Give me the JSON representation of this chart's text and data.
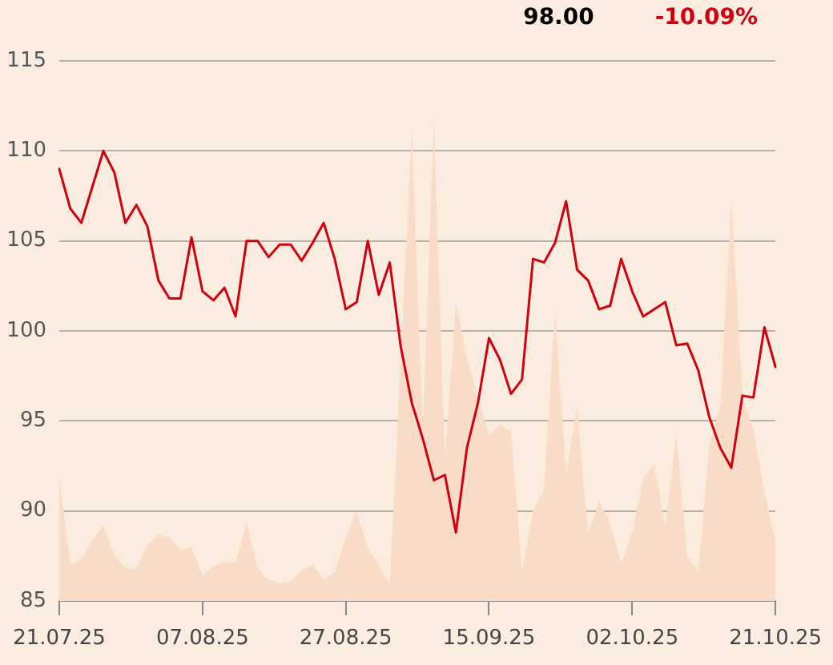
{
  "chart_data": {
    "type": "line",
    "categories": [
      "21.07.25",
      null,
      null,
      null,
      null,
      null,
      null,
      null,
      null,
      null,
      null,
      null,
      null,
      "07.08.25",
      null,
      null,
      null,
      null,
      null,
      null,
      null,
      null,
      null,
      null,
      null,
      null,
      "27.08.25",
      null,
      null,
      null,
      null,
      null,
      null,
      null,
      null,
      null,
      null,
      null,
      null,
      "15.09.25",
      null,
      null,
      null,
      null,
      null,
      null,
      null,
      null,
      null,
      null,
      null,
      null,
      "02.10.25",
      null,
      null,
      null,
      null,
      null,
      null,
      null,
      null,
      null,
      null,
      null,
      null,
      "21.10.25"
    ],
    "series": [
      {
        "type": "area",
        "color": "#f8dcc7",
        "values": [
          92.0,
          87.0,
          87.3,
          88.4,
          89.2,
          87.5,
          86.8,
          86.8,
          88.1,
          88.7,
          88.5,
          87.8,
          88.0,
          86.4,
          86.9,
          87.2,
          87.1,
          89.4,
          86.8,
          86.2,
          86.0,
          86.1,
          86.7,
          87.0,
          86.2,
          86.6,
          88.5,
          90.0,
          87.9,
          87.0,
          85.9,
          98.5,
          111.1,
          94.6,
          111.7,
          92.9,
          101.6,
          98.5,
          96.3,
          94.2,
          94.8,
          94.4,
          86.6,
          90.0,
          91.2,
          101.1,
          92.1,
          95.8,
          88.7,
          90.6,
          89.3,
          87.1,
          88.8,
          91.8,
          92.6,
          89.1,
          94.3,
          87.5,
          86.6,
          93.7,
          95.8,
          107.3,
          96.4,
          94.5,
          91.1,
          88.3
        ]
      },
      {
        "type": "line",
        "color": "#d0000f",
        "values": [
          109.0,
          106.8,
          106.0,
          108.0,
          110.0,
          108.8,
          106.0,
          107.0,
          105.8,
          102.8,
          101.8,
          101.8,
          105.2,
          102.2,
          101.7,
          102.4,
          100.8,
          105.0,
          105.0,
          104.1,
          104.8,
          104.8,
          103.9,
          104.9,
          106.0,
          104.0,
          101.2,
          101.6,
          105.0,
          102.0,
          103.8,
          99.1,
          96.0,
          94.0,
          91.7,
          92.0,
          88.8,
          93.5,
          96.0,
          99.6,
          98.4,
          96.5,
          97.3,
          104.0,
          103.8,
          104.9,
          107.2,
          103.4,
          102.8,
          101.2,
          101.4,
          104.0,
          102.2,
          100.8,
          101.2,
          101.6,
          99.2,
          99.3,
          97.8,
          95.2,
          93.5,
          92.4,
          96.4,
          96.3,
          100.2,
          98.0
        ]
      }
    ],
    "ylim": [
      85,
      115
    ],
    "yticks": [
      85,
      90,
      95,
      100,
      105,
      110,
      115
    ],
    "grid": "y",
    "legend": false,
    "annotations": [
      "98.00",
      "-10.09%"
    ]
  }
}
